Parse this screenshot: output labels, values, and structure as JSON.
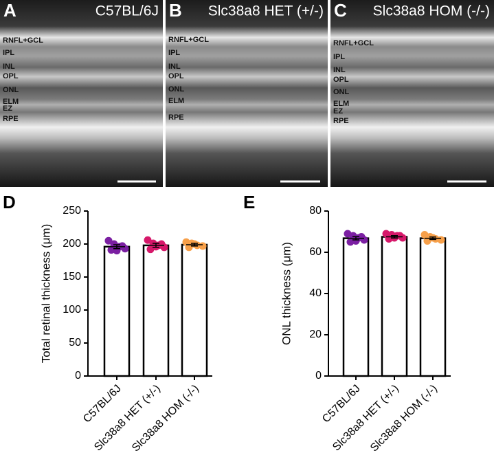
{
  "panels": [
    {
      "label": "A",
      "title": "C57BL/6J",
      "layers": [
        "RNFL+GCL",
        "IPL",
        "INL",
        "OPL",
        "ONL",
        "ELM",
        "EZ",
        "RPE"
      ]
    },
    {
      "label": "B",
      "title": "Slc38a8 HET (+/-)",
      "layers": [
        "RNFL+GCL",
        "IPL",
        "INL",
        "OPL",
        "ONL",
        "ELM",
        "RPE"
      ]
    },
    {
      "label": "C",
      "title": "Slc38a8 HOM (-/-)",
      "layers": [
        "RNFL+GCL",
        "IPL",
        "INL",
        "OPL",
        "ONL",
        "ELM",
        "EZ",
        "RPE"
      ]
    }
  ],
  "chart_data": [
    {
      "type": "bar",
      "panel_label": "D",
      "ylabel": "Total retinal thickness (μm)",
      "categories": [
        "C57BL/6J",
        "Slc38a8 HET (+/-)",
        "Slc38a8 HOM (-/-)"
      ],
      "values": [
        196,
        198,
        199
      ],
      "errors": [
        3,
        3,
        2
      ],
      "colors": [
        "#7b1fa2",
        "#d6186a",
        "#f7a04a"
      ],
      "points": [
        [
          205,
          200,
          196,
          193,
          191,
          190,
          197
        ],
        [
          206,
          201,
          198,
          195,
          192,
          196,
          200
        ],
        [
          203,
          201,
          198,
          197,
          195,
          200
        ]
      ],
      "ylim": [
        0,
        250
      ],
      "yticks": [
        0,
        50,
        100,
        150,
        200,
        250
      ]
    },
    {
      "type": "bar",
      "panel_label": "E",
      "ylabel": "ONL thickness (μm)",
      "categories": [
        "C57BL/6J",
        "Slc38a8 HET (+/-)",
        "Slc38a8 HOM (-/-)"
      ],
      "values": [
        66.8,
        67.5,
        66.8
      ],
      "errors": [
        0.8,
        0.6,
        0.6
      ],
      "colors": [
        "#7b1fa2",
        "#d6186a",
        "#f7a04a"
      ],
      "points": [
        [
          69,
          68,
          67,
          66,
          65,
          65.5,
          67.5
        ],
        [
          69,
          68.5,
          68,
          67,
          66.5,
          67,
          68
        ],
        [
          68.5,
          67.5,
          66.5,
          66,
          65.5,
          67
        ]
      ],
      "ylim": [
        0,
        80
      ],
      "yticks": [
        0,
        20,
        40,
        60,
        80
      ]
    }
  ]
}
